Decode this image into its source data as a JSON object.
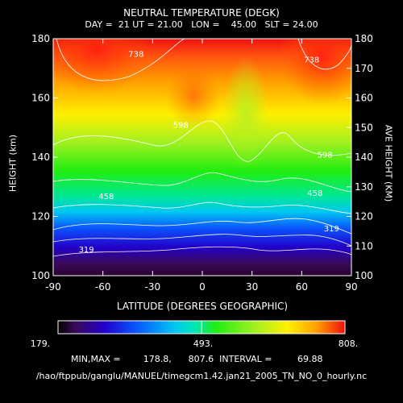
{
  "chart_data": {
    "type": "heatmap",
    "title": "NEUTRAL TEMPERATURE (DEGK)",
    "subtitle": "DAY =  21 UT = 21.00   LON =    45.00   SLT = 24.00",
    "xlabel": "LATITUDE (DEGREES GEOGRAPHIC)",
    "ylabel": "HEIGHT (km)",
    "ylabel_right": "AVE HEIGHT (KM)",
    "xlim": [
      -90,
      90
    ],
    "ylim": [
      100,
      180
    ],
    "yrlim": [
      100,
      180
    ],
    "x_ticks": [
      "-90",
      "-60",
      "-30",
      "0",
      "30",
      "60",
      "90"
    ],
    "y_ticks": [
      "100",
      "120",
      "140",
      "160",
      "180"
    ],
    "yr_ticks": [
      "100",
      "110",
      "120",
      "130",
      "140",
      "150",
      "160",
      "170",
      "180"
    ],
    "contour_labels": [
      {
        "text": "738",
        "lat": -40,
        "h": 175
      },
      {
        "text": "738",
        "lat": 66,
        "h": 173
      },
      {
        "text": "598",
        "lat": -13,
        "h": 151
      },
      {
        "text": "598",
        "lat": 74,
        "h": 141
      },
      {
        "text": "458",
        "lat": -58,
        "h": 127
      },
      {
        "text": "458",
        "lat": 68,
        "h": 128
      },
      {
        "text": "319",
        "lat": -70,
        "h": 109
      },
      {
        "text": "319",
        "lat": 78,
        "h": 116
      }
    ],
    "colorbar": {
      "min_label": "179.",
      "mid_label": "493.",
      "max_label": "808.",
      "min": 178.8,
      "max": 807.6
    },
    "stats_text": "MIN,MAX =        178.8,      807.6  INTERVAL =         69.88",
    "min": 178.8,
    "max": 807.6,
    "interval": 69.88
  },
  "footer": {
    "filepath": "/hao/ftppub/ganglu/MANUEL/timegcm1.42.jan21_2005_TN_NO_0_hourly.nc"
  }
}
